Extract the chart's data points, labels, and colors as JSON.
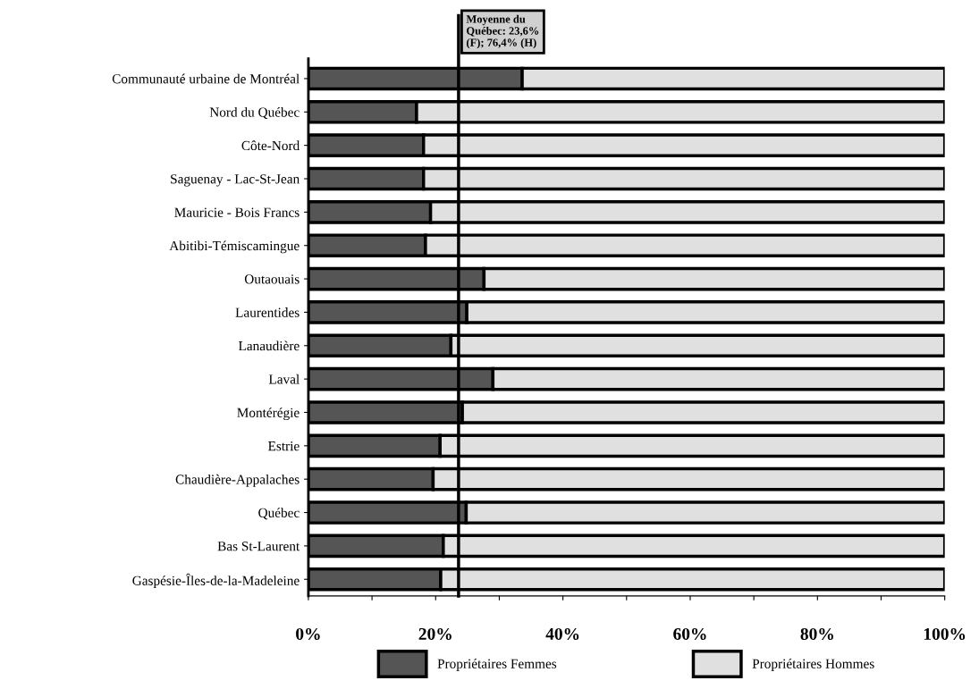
{
  "chart_data": {
    "type": "bar",
    "orientation": "horizontal",
    "stacked": true,
    "categories": [
      "Communauté urbaine de Montréal",
      "Nord du Québec",
      "Côte-Nord",
      "Saguenay - Lac-St-Jean",
      "Mauricie - Bois Francs",
      "Abitibi-Témiscamingue",
      "Outaouais",
      "Laurentides",
      "Lanaudière",
      "Laval",
      "Montérégie",
      "Estrie",
      "Chaudière-Appalaches",
      "Québec",
      "Bas St-Laurent",
      "Gaspésie-Îles-de-la-Madeleine"
    ],
    "series": [
      {
        "name": "Propriétaires Femmes",
        "color": "#555555",
        "values": [
          33.6,
          17.0,
          18.1,
          18.1,
          19.2,
          18.4,
          27.6,
          24.9,
          22.4,
          29.0,
          24.2,
          20.7,
          19.6,
          24.8,
          21.2,
          20.8
        ]
      },
      {
        "name": "Propriétaires Hommes",
        "color": "#e0e0e0",
        "values": [
          66.4,
          83.0,
          81.9,
          81.9,
          80.8,
          81.6,
          72.4,
          75.1,
          77.6,
          71.0,
          75.8,
          79.3,
          80.4,
          75.2,
          78.8,
          79.2
        ]
      }
    ],
    "xlim": [
      0,
      100
    ],
    "xticks": [
      {
        "value": 0,
        "label": "0%"
      },
      {
        "value": 10,
        "label": null
      },
      {
        "value": 20,
        "label": "20%"
      },
      {
        "value": 30,
        "label": null
      },
      {
        "value": 40,
        "label": "40%"
      },
      {
        "value": 50,
        "label": null
      },
      {
        "value": 60,
        "label": "60%"
      },
      {
        "value": 70,
        "label": null
      },
      {
        "value": 80,
        "label": "80%"
      },
      {
        "value": 90,
        "label": null
      },
      {
        "value": 100,
        "label": "100%"
      }
    ],
    "ref_lines": [
      {
        "axis": "x",
        "value": 23.6,
        "label": "Moyenne du\nQuébec: 23,6%\n(F); 76,4% (H)",
        "color": "#000000"
      }
    ],
    "legend": "bottom",
    "grid": false
  }
}
